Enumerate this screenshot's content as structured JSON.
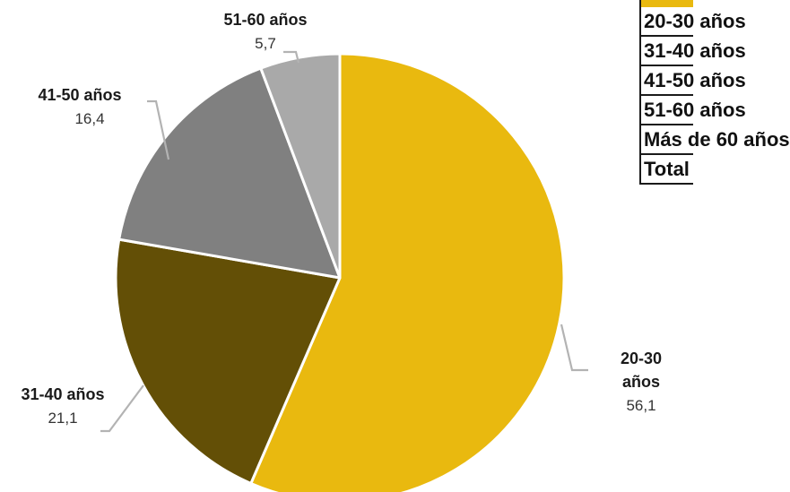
{
  "chart_data": {
    "type": "pie",
    "categories": [
      "20-30 años",
      "31-40 años",
      "41-50 años",
      "51-60 años"
    ],
    "values": [
      56.1,
      21.1,
      16.4,
      5.7
    ],
    "value_labels": [
      "56,1",
      "21,1",
      "16,4",
      "5,7"
    ],
    "colors": [
      "#e9b90f",
      "#634f06",
      "#808080",
      "#a9a9a9"
    ],
    "slice_order": "clockwise-from-top",
    "title": "",
    "legend": "none"
  },
  "side_table": {
    "header_color": "#e9b90f",
    "rows": [
      "20-30 años",
      "31-40 años",
      "41-50 años",
      "51-60 años",
      "Más de 60 años",
      "Total"
    ]
  }
}
